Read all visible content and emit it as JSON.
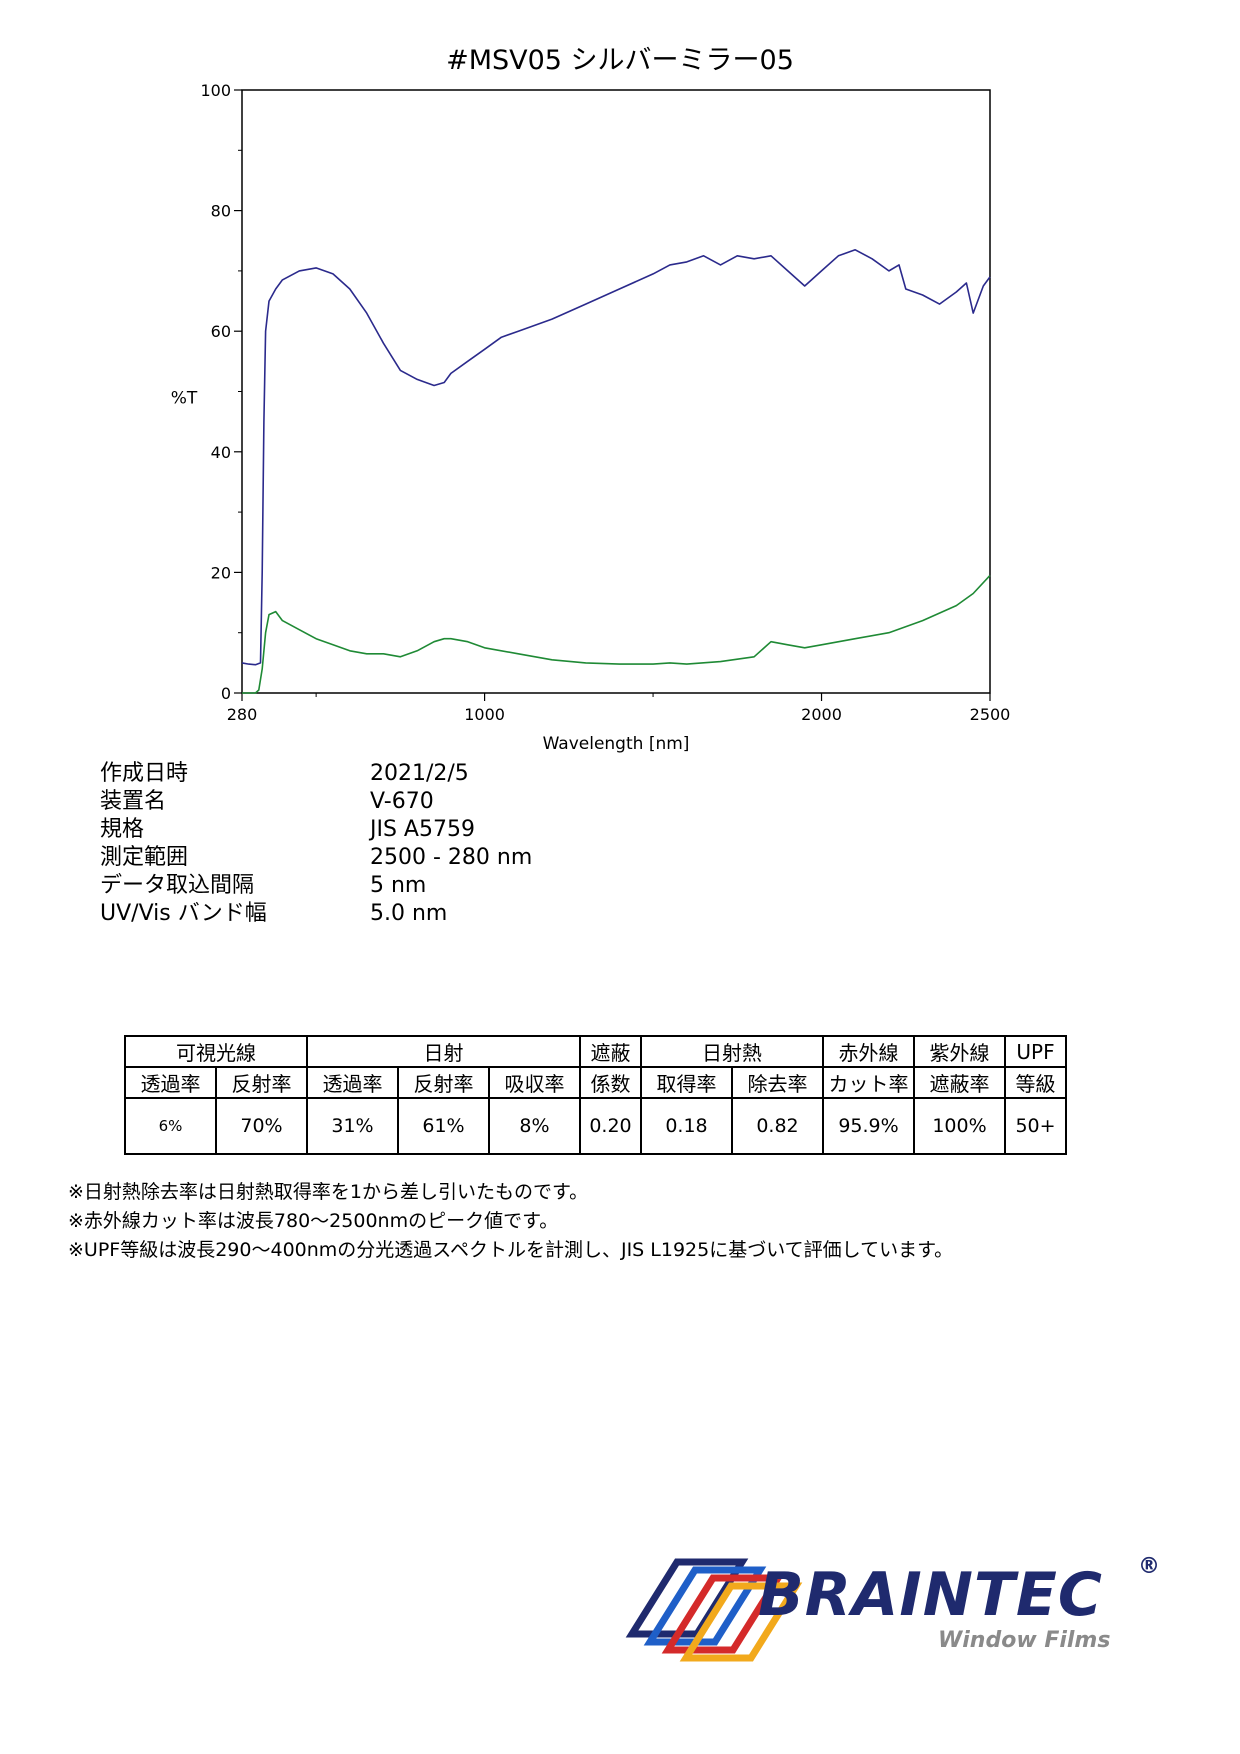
{
  "chart_data": {
    "type": "line",
    "title": "#MSV05  シルバーミラー05",
    "xlabel": "Wavelength [nm]",
    "ylabel": "%T",
    "xlim": [
      280,
      2500
    ],
    "ylim": [
      0,
      100
    ],
    "x_ticks": [
      280,
      1000,
      2000,
      2500
    ],
    "y_ticks": [
      0,
      20,
      40,
      60,
      80,
      100
    ],
    "grid": false,
    "legend": "none",
    "series": [
      {
        "color": "#2b2a8c",
        "x": [
          280,
          300,
          320,
          335,
          340,
          345,
          350,
          360,
          380,
          400,
          450,
          500,
          550,
          600,
          650,
          700,
          750,
          800,
          850,
          880,
          900,
          950,
          1000,
          1050,
          1100,
          1200,
          1300,
          1400,
          1500,
          1550,
          1600,
          1650,
          1700,
          1750,
          1800,
          1850,
          1900,
          1950,
          2000,
          2050,
          2100,
          2150,
          2200,
          2230,
          2250,
          2300,
          2350,
          2400,
          2430,
          2450,
          2480,
          2500
        ],
        "y": [
          5,
          4.8,
          4.7,
          5,
          20,
          45,
          60,
          65,
          67,
          68.5,
          70,
          70.5,
          69.5,
          67,
          63,
          58,
          53.5,
          52,
          51,
          51.5,
          53,
          55,
          57,
          59,
          60,
          62,
          64.5,
          67,
          69.5,
          71,
          71.5,
          72.5,
          71,
          72.5,
          72,
          72.5,
          70,
          67.5,
          70,
          72.5,
          73.5,
          72,
          70,
          71,
          67,
          66,
          64.5,
          66.5,
          68,
          63,
          67.5,
          69
        ]
      },
      {
        "color": "#1f8a35",
        "x": [
          280,
          320,
          330,
          340,
          350,
          360,
          380,
          400,
          450,
          500,
          550,
          600,
          650,
          700,
          750,
          800,
          850,
          880,
          900,
          950,
          1000,
          1100,
          1200,
          1300,
          1400,
          1500,
          1550,
          1600,
          1700,
          1800,
          1850,
          1900,
          1950,
          2000,
          2100,
          2200,
          2300,
          2400,
          2450,
          2500
        ],
        "y": [
          0,
          0,
          0.5,
          4,
          10,
          13,
          13.5,
          12,
          10.5,
          9,
          8,
          7,
          6.5,
          6.5,
          6,
          7,
          8.5,
          9,
          9,
          8.5,
          7.5,
          6.5,
          5.5,
          5,
          4.8,
          4.8,
          5,
          4.8,
          5.2,
          6,
          8.5,
          8,
          7.5,
          8,
          9,
          10,
          12,
          14.5,
          16.5,
          19.5
        ]
      }
    ]
  },
  "info": {
    "rows": [
      {
        "label": "作成日時",
        "value": "2021/2/5"
      },
      {
        "label": "装置名",
        "value": "V-670"
      },
      {
        "label": "規格",
        "value": "JIS A5759"
      },
      {
        "label": "測定範囲",
        "value": "2500 - 280 nm"
      },
      {
        "label": "データ取込間隔",
        "value": "5 nm"
      },
      {
        "label": "UV/Vis バンド幅",
        "value": "5.0 nm"
      }
    ]
  },
  "table": {
    "g_visible": "可視光線",
    "g_solar": "日射",
    "shading_1": "遮蔽",
    "shading_2": "係数",
    "g_heat": "日射熱",
    "ir_1": "赤外線",
    "ir_2": "カット率",
    "uv_1": "紫外線",
    "uv_2": "遮蔽率",
    "upf_1": "UPF",
    "upf_2": "等級",
    "vis_trans": "透過率",
    "vis_refl": "反射率",
    "sol_trans": "透過率",
    "sol_refl": "反射率",
    "sol_abs": "吸収率",
    "heat_gain": "取得率",
    "heat_rem": "除去率",
    "values": [
      "6%",
      "70%",
      "31%",
      "61%",
      "8%",
      "0.20",
      "0.18",
      "0.82",
      "95.9%",
      "100%",
      "50+"
    ]
  },
  "notes": [
    "※日射熱除去率は日射熱取得率を1から差し引いたものです。",
    "※赤外線カット率は波長780〜2500nmのピーク値です。",
    "※UPF等級は波長290〜400nmの分光透過スペクトルを計測し、JIS L1925に基づいて評価しています。"
  ],
  "logo": {
    "brand": "BRAINTEC",
    "reg": "®",
    "sub": "Window Films",
    "colors": [
      "#1f2a6e",
      "#1f5fc8",
      "#d42a2a",
      "#f2a91c"
    ]
  }
}
